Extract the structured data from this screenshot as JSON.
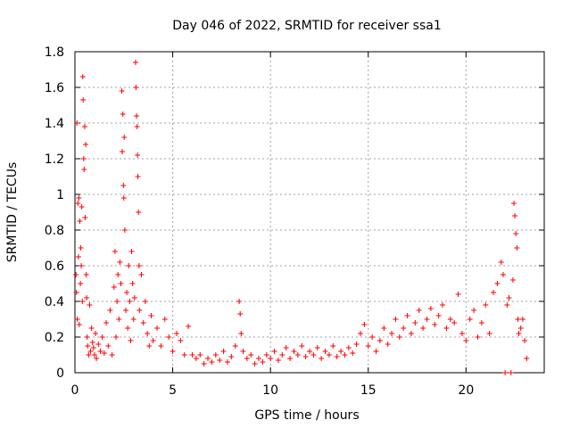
{
  "chart_data": {
    "type": "scatter",
    "title": "Day 046 of 2022, SRMTID for receiver ssa1",
    "xlabel": "GPS time / hours",
    "ylabel": "SRMTID / TECUs",
    "xlim": [
      0,
      24
    ],
    "ylim": [
      0,
      1.8
    ],
    "x_ticks": [
      0,
      5,
      10,
      15,
      20
    ],
    "x_tick_labels": [
      "0",
      "5",
      "10",
      "15",
      "20"
    ],
    "y_ticks": [
      0,
      0.2,
      0.4,
      0.6,
      0.8,
      1,
      1.2,
      1.4,
      1.6,
      1.8
    ],
    "y_tick_labels": [
      "0",
      "0.2",
      "0.4",
      "0.6",
      "0.8",
      "1",
      "1.2",
      "1.4",
      "1.6",
      "1.8"
    ],
    "grid": true,
    "marker": "+",
    "marker_color": "#ff0000",
    "series": [
      {
        "name": "SRMTID",
        "points": [
          [
            0.05,
            0.55
          ],
          [
            0.08,
            0.45
          ],
          [
            0.1,
            1.4
          ],
          [
            0.12,
            0.3
          ],
          [
            0.15,
            0.95
          ],
          [
            0.18,
            0.65
          ],
          [
            0.2,
            0.98
          ],
          [
            0.22,
            0.27
          ],
          [
            0.25,
            0.85
          ],
          [
            0.28,
            0.5
          ],
          [
            0.3,
            0.7
          ],
          [
            0.32,
            0.6
          ],
          [
            0.35,
            0.93
          ],
          [
            0.38,
            0.4
          ],
          [
            0.4,
            1.66
          ],
          [
            0.42,
            1.53
          ],
          [
            0.45,
            1.2
          ],
          [
            0.47,
            1.14
          ],
          [
            0.5,
            1.38
          ],
          [
            0.52,
            0.87
          ],
          [
            0.55,
            1.28
          ],
          [
            0.58,
            0.55
          ],
          [
            0.6,
            0.42
          ],
          [
            0.62,
            0.2
          ],
          [
            0.65,
            0.15
          ],
          [
            0.7,
            0.1
          ],
          [
            0.75,
            0.38
          ],
          [
            0.8,
            0.12
          ],
          [
            0.85,
            0.25
          ],
          [
            0.9,
            0.17
          ],
          [
            0.95,
            0.14
          ],
          [
            1.0,
            0.1
          ],
          [
            1.05,
            0.22
          ],
          [
            1.1,
            0.08
          ],
          [
            1.2,
            0.16
          ],
          [
            1.3,
            0.12
          ],
          [
            1.4,
            0.2
          ],
          [
            1.5,
            0.11
          ],
          [
            1.6,
            0.28
          ],
          [
            1.7,
            0.15
          ],
          [
            1.8,
            0.35
          ],
          [
            1.9,
            0.1
          ],
          [
            2.0,
            0.48
          ],
          [
            2.05,
            0.68
          ],
          [
            2.1,
            0.2
          ],
          [
            2.15,
            0.4
          ],
          [
            2.2,
            0.55
          ],
          [
            2.25,
            0.3
          ],
          [
            2.3,
            0.62
          ],
          [
            2.35,
            0.5
          ],
          [
            2.4,
            1.58
          ],
          [
            2.42,
            1.24
          ],
          [
            2.45,
            1.45
          ],
          [
            2.48,
            1.05
          ],
          [
            2.5,
            0.98
          ],
          [
            2.52,
            1.32
          ],
          [
            2.55,
            0.8
          ],
          [
            2.6,
            0.35
          ],
          [
            2.65,
            0.45
          ],
          [
            2.7,
            0.25
          ],
          [
            2.75,
            0.6
          ],
          [
            2.8,
            0.4
          ],
          [
            2.85,
            0.18
          ],
          [
            2.9,
            0.68
          ],
          [
            2.95,
            0.5
          ],
          [
            3.0,
            0.3
          ],
          [
            3.05,
            0.42
          ],
          [
            3.1,
            1.74
          ],
          [
            3.12,
            1.6
          ],
          [
            3.15,
            1.44
          ],
          [
            3.18,
            1.38
          ],
          [
            3.2,
            1.22
          ],
          [
            3.22,
            1.1
          ],
          [
            3.25,
            0.9
          ],
          [
            3.28,
            0.6
          ],
          [
            3.3,
            0.35
          ],
          [
            3.4,
            0.55
          ],
          [
            3.5,
            0.28
          ],
          [
            3.6,
            0.4
          ],
          [
            3.7,
            0.22
          ],
          [
            3.8,
            0.15
          ],
          [
            3.9,
            0.32
          ],
          [
            4.0,
            0.18
          ],
          [
            4.2,
            0.25
          ],
          [
            4.4,
            0.15
          ],
          [
            4.6,
            0.3
          ],
          [
            4.8,
            0.2
          ],
          [
            5.0,
            0.12
          ],
          [
            5.2,
            0.22
          ],
          [
            5.4,
            0.18
          ],
          [
            5.6,
            0.1
          ],
          [
            5.8,
            0.26
          ],
          [
            6.0,
            0.1
          ],
          [
            6.2,
            0.08
          ],
          [
            6.4,
            0.1
          ],
          [
            6.6,
            0.05
          ],
          [
            6.8,
            0.08
          ],
          [
            7.0,
            0.06
          ],
          [
            7.2,
            0.1
          ],
          [
            7.4,
            0.07
          ],
          [
            7.6,
            0.12
          ],
          [
            7.8,
            0.06
          ],
          [
            8.0,
            0.09
          ],
          [
            8.2,
            0.15
          ],
          [
            8.4,
            0.4
          ],
          [
            8.45,
            0.33
          ],
          [
            8.5,
            0.22
          ],
          [
            8.6,
            0.12
          ],
          [
            8.8,
            0.08
          ],
          [
            9.0,
            0.1
          ],
          [
            9.2,
            0.05
          ],
          [
            9.4,
            0.08
          ],
          [
            9.6,
            0.06
          ],
          [
            9.8,
            0.1
          ],
          [
            10.0,
            0.08
          ],
          [
            10.2,
            0.12
          ],
          [
            10.4,
            0.07
          ],
          [
            10.6,
            0.1
          ],
          [
            10.8,
            0.14
          ],
          [
            11.0,
            0.08
          ],
          [
            11.2,
            0.12
          ],
          [
            11.4,
            0.1
          ],
          [
            11.6,
            0.15
          ],
          [
            11.8,
            0.09
          ],
          [
            12.0,
            0.12
          ],
          [
            12.2,
            0.1
          ],
          [
            12.4,
            0.14
          ],
          [
            12.6,
            0.08
          ],
          [
            12.8,
            0.12
          ],
          [
            13.0,
            0.1
          ],
          [
            13.2,
            0.15
          ],
          [
            13.4,
            0.09
          ],
          [
            13.6,
            0.12
          ],
          [
            13.8,
            0.1
          ],
          [
            14.0,
            0.14
          ],
          [
            14.2,
            0.11
          ],
          [
            14.4,
            0.16
          ],
          [
            14.6,
            0.22
          ],
          [
            14.8,
            0.27
          ],
          [
            15.0,
            0.15
          ],
          [
            15.2,
            0.2
          ],
          [
            15.4,
            0.12
          ],
          [
            15.6,
            0.18
          ],
          [
            15.8,
            0.25
          ],
          [
            16.0,
            0.16
          ],
          [
            16.2,
            0.22
          ],
          [
            16.4,
            0.3
          ],
          [
            16.6,
            0.2
          ],
          [
            16.8,
            0.25
          ],
          [
            17.0,
            0.32
          ],
          [
            17.2,
            0.22
          ],
          [
            17.4,
            0.28
          ],
          [
            17.6,
            0.35
          ],
          [
            17.8,
            0.25
          ],
          [
            18.0,
            0.3
          ],
          [
            18.2,
            0.36
          ],
          [
            18.4,
            0.27
          ],
          [
            18.6,
            0.32
          ],
          [
            18.8,
            0.38
          ],
          [
            19.0,
            0.25
          ],
          [
            19.2,
            0.3
          ],
          [
            19.4,
            0.28
          ],
          [
            19.6,
            0.44
          ],
          [
            19.8,
            0.22
          ],
          [
            20.0,
            0.18
          ],
          [
            20.2,
            0.3
          ],
          [
            20.4,
            0.35
          ],
          [
            20.6,
            0.2
          ],
          [
            20.8,
            0.28
          ],
          [
            21.0,
            0.38
          ],
          [
            21.2,
            0.22
          ],
          [
            21.4,
            0.45
          ],
          [
            21.6,
            0.5
          ],
          [
            21.8,
            0.62
          ],
          [
            21.9,
            0.55
          ],
          [
            22.0,
            0.0
          ],
          [
            22.1,
            0.38
          ],
          [
            22.2,
            0.42
          ],
          [
            22.3,
            0.0
          ],
          [
            22.4,
            0.52
          ],
          [
            22.45,
            0.95
          ],
          [
            22.5,
            0.88
          ],
          [
            22.55,
            0.78
          ],
          [
            22.6,
            0.7
          ],
          [
            22.65,
            0.3
          ],
          [
            22.7,
            0.22
          ],
          [
            22.8,
            0.25
          ],
          [
            22.9,
            0.3
          ],
          [
            23.0,
            0.18
          ],
          [
            23.1,
            0.08
          ]
        ]
      }
    ]
  }
}
